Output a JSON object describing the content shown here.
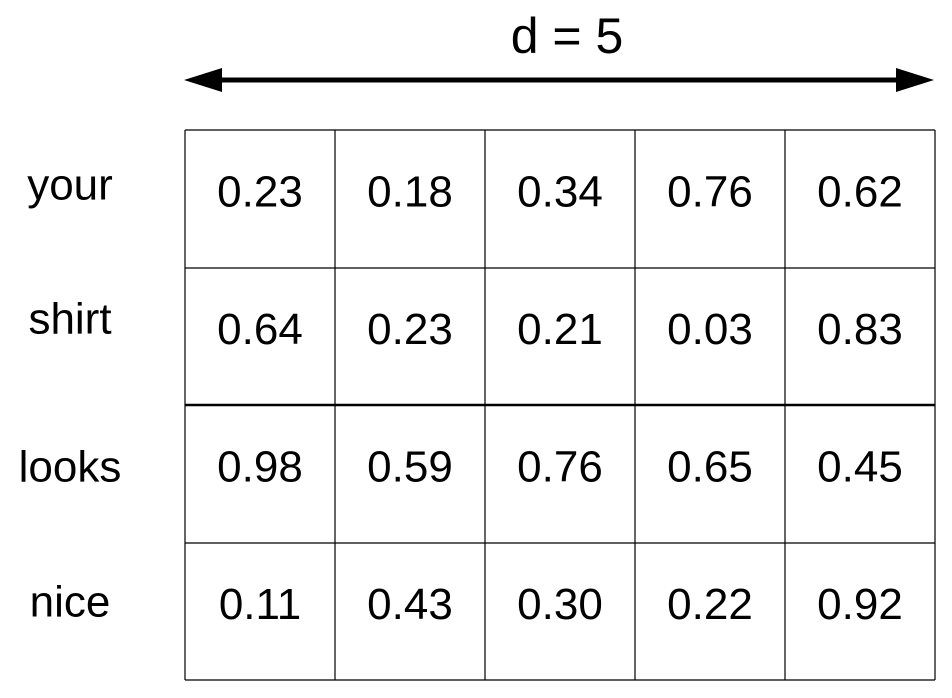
{
  "header": {
    "title": "d = 5"
  },
  "table": {
    "row_labels": [
      "your",
      "shirt",
      "looks",
      "nice"
    ],
    "rows": [
      [
        "0.23",
        "0.18",
        "0.34",
        "0.76",
        "0.62"
      ],
      [
        "0.64",
        "0.23",
        "0.21",
        "0.03",
        "0.83"
      ],
      [
        "0.98",
        "0.59",
        "0.76",
        "0.65",
        "0.45"
      ],
      [
        "0.11",
        "0.43",
        "0.30",
        "0.22",
        "0.92"
      ]
    ]
  }
}
